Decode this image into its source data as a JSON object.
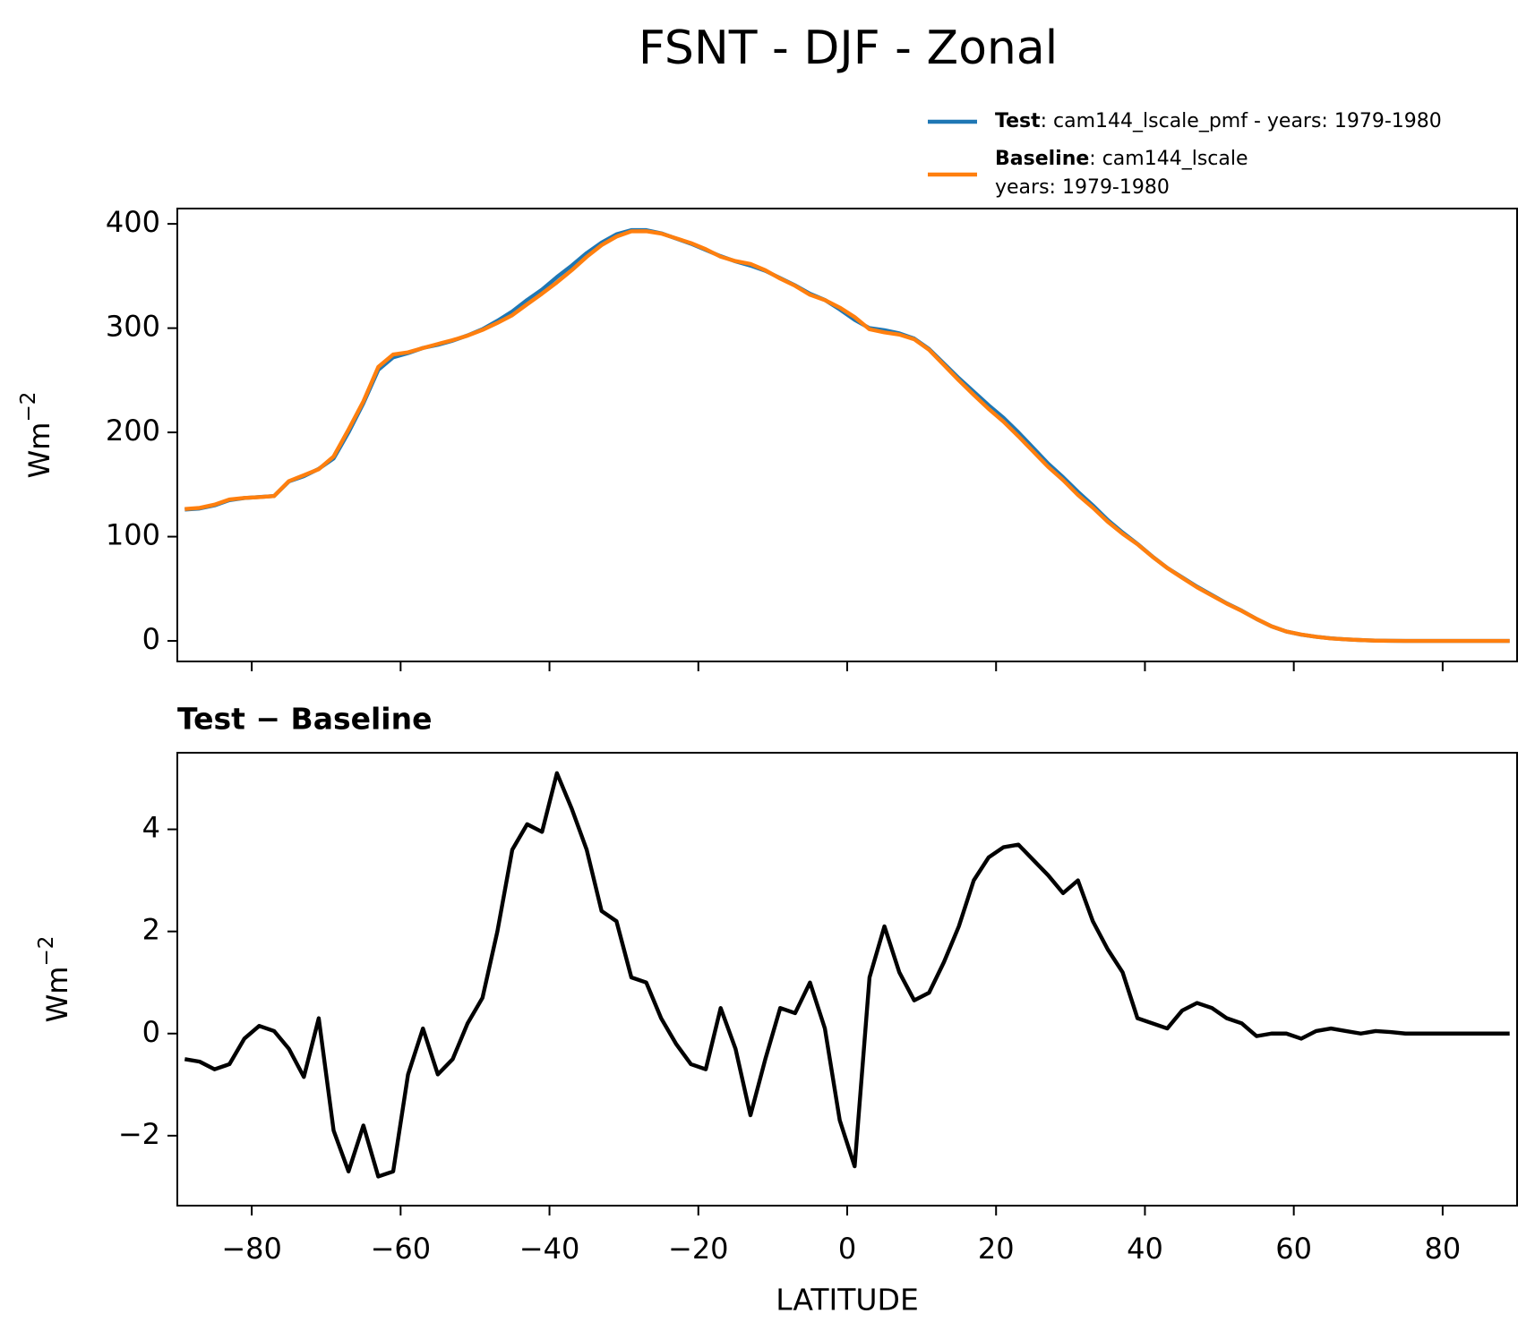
{
  "title": "FSNT - DJF - Zonal",
  "chart_data": [
    {
      "type": "line",
      "ylabel": "Wm",
      "ylabel_exponent": "−2",
      "x": [
        -89,
        -87,
        -85,
        -83,
        -81,
        -79,
        -77,
        -75,
        -73,
        -71,
        -69,
        -67,
        -65,
        -63,
        -61,
        -59,
        -57,
        -55,
        -53,
        -51,
        -49,
        -47,
        -45,
        -43,
        -41,
        -39,
        -37,
        -35,
        -33,
        -31,
        -29,
        -27,
        -25,
        -23,
        -21,
        -19,
        -17,
        -15,
        -13,
        -11,
        -9,
        -7,
        -5,
        -3,
        -1,
        1,
        3,
        5,
        7,
        9,
        11,
        13,
        15,
        17,
        19,
        21,
        23,
        25,
        27,
        29,
        31,
        33,
        35,
        37,
        39,
        41,
        43,
        45,
        47,
        49,
        51,
        53,
        55,
        57,
        59,
        61,
        63,
        65,
        67,
        69,
        71,
        73,
        75,
        77,
        79,
        81,
        83,
        85,
        87,
        89
      ],
      "series": [
        {
          "name": "Test",
          "label": ": cam144_lscale_pmf - years: 1979-1980",
          "color": "#1f77b4",
          "values": [
            126,
            127,
            130,
            135,
            137,
            138,
            139,
            153,
            158,
            165,
            175,
            200,
            228,
            260,
            272,
            276,
            281,
            284,
            288,
            293,
            299,
            307,
            316,
            327,
            337,
            349,
            360,
            372,
            382,
            390,
            394,
            394,
            391,
            386,
            381,
            375,
            369,
            364,
            360,
            355,
            348,
            341,
            333,
            327,
            318,
            308,
            300,
            298,
            295,
            290,
            280,
            266,
            252,
            239,
            226,
            214,
            200,
            185,
            170,
            157,
            143,
            130,
            116,
            104,
            93,
            81,
            70,
            61,
            52,
            44,
            36,
            29,
            21,
            14,
            9,
            6,
            4,
            2.5,
            1.5,
            0.8,
            0.3,
            0.1,
            0,
            0,
            0,
            0,
            0,
            0,
            0,
            0
          ]
        },
        {
          "name": "Baseline",
          "label_lines": [
            ": cam144_lscale",
            "years: 1979-1980"
          ],
          "color": "#ff7f0e",
          "values": [
            126.5,
            127.6,
            130.7,
            135.6,
            137.1,
            137.9,
            139.0,
            153.3,
            158.9,
            164.7,
            176.9,
            202.7,
            229.8,
            262.8,
            274.7,
            276.8,
            280.9,
            284.8,
            288.5,
            292.8,
            298.3,
            305,
            312.4,
            322.9,
            333.1,
            343.9,
            355.6,
            368.4,
            379.6,
            387.8,
            392.9,
            393,
            390.7,
            386.2,
            381.6,
            375.7,
            368.5,
            364.3,
            361.6,
            355.5,
            347.5,
            340.6,
            332,
            326.9,
            319.7,
            310.6,
            298.9,
            295.9,
            293.8,
            289.35,
            279.2,
            264.6,
            249.9,
            236,
            222.55,
            210.35,
            196.3,
            181.6,
            166.9,
            154.25,
            140,
            127.8,
            114.35,
            102.8,
            92.7,
            80.8,
            69.9,
            60.55,
            51.4,
            43.5,
            35.7,
            28.8,
            21.05,
            14,
            9,
            6.1,
            3.95,
            2.4,
            1.45,
            0.8,
            0.25,
            0.07,
            0,
            0,
            0,
            0,
            0,
            0,
            0,
            0
          ]
        }
      ],
      "xlim": [
        -90,
        90
      ],
      "xticks": [
        -80,
        -60,
        -40,
        -20,
        0,
        20,
        40,
        60,
        80
      ],
      "ylim": [
        -19.7,
        414.7
      ],
      "yticks": [
        0,
        100,
        200,
        300,
        400
      ]
    },
    {
      "type": "line",
      "title": "Test − Baseline",
      "xlabel": "LATITUDE",
      "ylabel": "Wm",
      "ylabel_exponent": "−2",
      "x": [
        -89,
        -87,
        -85,
        -83,
        -81,
        -79,
        -77,
        -75,
        -73,
        -71,
        -69,
        -67,
        -65,
        -63,
        -61,
        -59,
        -57,
        -55,
        -53,
        -51,
        -49,
        -47,
        -45,
        -43,
        -41,
        -39,
        -37,
        -35,
        -33,
        -31,
        -29,
        -27,
        -25,
        -23,
        -21,
        -19,
        -17,
        -15,
        -13,
        -11,
        -9,
        -7,
        -5,
        -3,
        -1,
        1,
        3,
        5,
        7,
        9,
        11,
        13,
        15,
        17,
        19,
        21,
        23,
        25,
        27,
        29,
        31,
        33,
        35,
        37,
        39,
        41,
        43,
        45,
        47,
        49,
        51,
        53,
        55,
        57,
        59,
        61,
        63,
        65,
        67,
        69,
        71,
        73,
        75,
        77,
        79,
        81,
        83,
        85,
        87,
        89
      ],
      "series": [
        {
          "color": "#000000",
          "values": [
            -0.5,
            -0.55,
            -0.7,
            -0.6,
            -0.1,
            0.15,
            0.05,
            -0.3,
            -0.85,
            0.3,
            -1.9,
            -2.7,
            -1.8,
            -2.8,
            -2.7,
            -0.8,
            0.1,
            -0.8,
            -0.5,
            0.2,
            0.7,
            2.0,
            3.6,
            4.1,
            3.95,
            5.1,
            4.4,
            3.6,
            2.4,
            2.2,
            1.1,
            1.0,
            0.3,
            -0.2,
            -0.6,
            -0.7,
            0.5,
            -0.3,
            -1.6,
            -0.5,
            0.5,
            0.4,
            1.0,
            0.1,
            -1.7,
            -2.6,
            1.1,
            2.1,
            1.2,
            0.65,
            0.8,
            1.4,
            2.1,
            3.0,
            3.45,
            3.65,
            3.7,
            3.4,
            3.1,
            2.75,
            3.0,
            2.2,
            1.65,
            1.2,
            0.3,
            0.2,
            0.1,
            0.45,
            0.6,
            0.5,
            0.3,
            0.2,
            -0.05,
            0,
            0,
            -0.1,
            0.05,
            0.1,
            0.05,
            0,
            0.05,
            0.03,
            0,
            0,
            0,
            0,
            0,
            0,
            0,
            0
          ]
        }
      ],
      "xlim": [
        -90,
        90
      ],
      "xticks": [
        {
          "value": -80,
          "label": "−80"
        },
        {
          "value": -60,
          "label": "−60"
        },
        {
          "value": -40,
          "label": "−40"
        },
        {
          "value": -20,
          "label": "−20"
        },
        0,
        20,
        40,
        60,
        80
      ],
      "ylim": [
        -3.37,
        5.5
      ],
      "yticks": [
        {
          "value": -2,
          "label": "−2"
        },
        0,
        2,
        4
      ]
    }
  ]
}
